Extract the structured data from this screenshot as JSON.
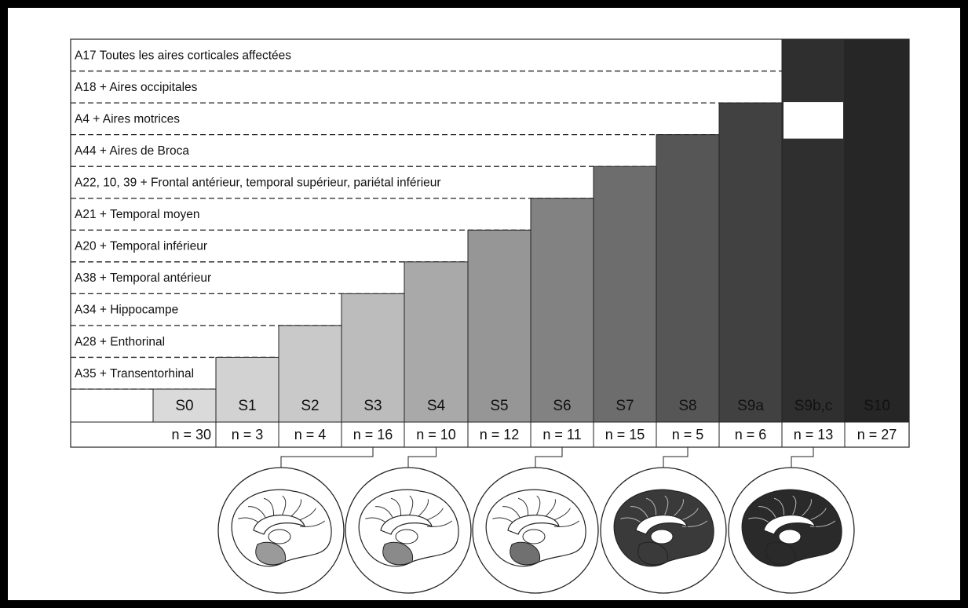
{
  "rows": [
    "A17  Toutes les aires corticales affectées",
    "A18 + Aires occipitales",
    "A4 + Aires motrices",
    "A44 + Aires de Broca",
    "A22, 10, 39 + Frontal antérieur, temporal supérieur, pariétal inférieur",
    "A21 + Temporal moyen",
    "A20 + Temporal inférieur",
    "A38 + Temporal antérieur",
    "A34 + Hippocampe",
    "A28 + Enthorinal",
    "A35 + Transentorhinal"
  ],
  "stages": [
    {
      "label": "S0",
      "n": "n = 30"
    },
    {
      "label": "S1",
      "n": "n = 3"
    },
    {
      "label": "S2",
      "n": "n = 4"
    },
    {
      "label": "S3",
      "n": "n = 16"
    },
    {
      "label": "S4",
      "n": "n = 10"
    },
    {
      "label": "S5",
      "n": "n = 12"
    },
    {
      "label": "S6",
      "n": "n = 11"
    },
    {
      "label": "S7",
      "n": "n = 15"
    },
    {
      "label": "S8",
      "n": "n = 5"
    },
    {
      "label": "S9a",
      "n": "n = 6"
    },
    {
      "label": "S9b,c",
      "n": "n = 13"
    },
    {
      "label": "S10",
      "n": "n = 27"
    }
  ]
}
